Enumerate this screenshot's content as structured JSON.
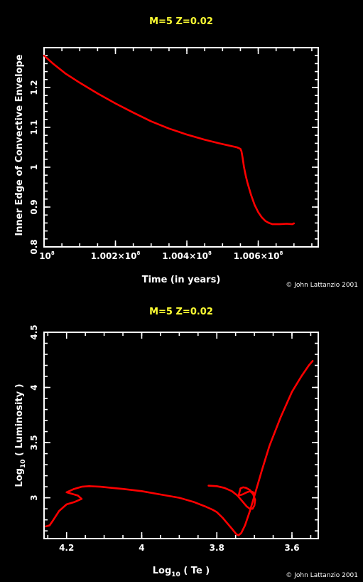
{
  "chart_data": [
    {
      "type": "line",
      "title": "M=5 Z=0.02",
      "xlabel": "Time (in years)",
      "ylabel": "Inner Edge of Convective Envelope",
      "xlim": [
        100000000.0,
        100768000.0
      ],
      "ylim": [
        0.8,
        1.3
      ],
      "x_ticks": [
        {
          "value": 100000000.0,
          "mantissa": "10",
          "exponent": "8"
        },
        {
          "value": 100200000.0,
          "mantissa": "1.002×10",
          "exponent": "8"
        },
        {
          "value": 100400000.0,
          "mantissa": "1.004×10",
          "exponent": "8"
        },
        {
          "value": 100600000.0,
          "mantissa": "1.006×10",
          "exponent": "8"
        }
      ],
      "y_ticks": [
        {
          "value": 0.8,
          "label": "0.8"
        },
        {
          "value": 0.9,
          "label": "0.9"
        },
        {
          "value": 1.0,
          "label": "1"
        },
        {
          "value": 1.1,
          "label": "1.1"
        },
        {
          "value": 1.2,
          "label": "1.2"
        }
      ],
      "credit": "© John Lattanzio 2001",
      "color": "#ff0000",
      "series": [
        {
          "x": [
            100000000.0,
            100025000.0,
            100060000.0,
            100100000.0,
            100150000.0,
            100200000.0,
            100250000.0,
            100300000.0,
            100350000.0,
            100400000.0,
            100450000.0,
            100490000.0,
            100520000.0,
            100540000.0,
            100550000.0,
            100553000.0,
            100556000.0,
            100560000.0,
            100565000.0,
            100570000.0,
            100580000.0,
            100590000.0,
            100600000.0,
            100610000.0,
            100620000.0,
            100630000.0,
            100640000.0,
            100660000.0,
            100680000.0,
            100695000.0,
            100700000.0
          ],
          "y": [
            1.28,
            1.26,
            1.235,
            1.212,
            1.185,
            1.16,
            1.137,
            1.115,
            1.097,
            1.082,
            1.069,
            1.06,
            1.054,
            1.05,
            1.046,
            1.04,
            1.025,
            1.0,
            0.978,
            0.96,
            0.93,
            0.905,
            0.887,
            0.874,
            0.865,
            0.86,
            0.857,
            0.857,
            0.858,
            0.857,
            0.859
          ]
        }
      ]
    },
    {
      "type": "line",
      "title": "M=5 Z=0.02",
      "xlabel_main": "Log",
      "xlabel_sub": "10",
      "xlabel_rest": " ( Te )",
      "ylabel_main": "Log",
      "ylabel_sub": "10",
      "ylabel_rest": " ( Luminosity )",
      "xlim": [
        4.26,
        3.53
      ],
      "ylim": [
        2.63,
        4.5
      ],
      "x_ticks": [
        {
          "value": 4.2,
          "label": "4.2"
        },
        {
          "value": 4.0,
          "label": "4"
        },
        {
          "value": 3.8,
          "label": "3.8"
        },
        {
          "value": 3.6,
          "label": "3.6"
        }
      ],
      "y_ticks": [
        {
          "value": 3.0,
          "label": "3"
        },
        {
          "value": 3.5,
          "label": "3.5"
        },
        {
          "value": 4.0,
          "label": "4"
        },
        {
          "value": 4.5,
          "label": "4.5"
        }
      ],
      "credit": "© John Lattanzio 2001",
      "color": "#ff0000",
      "series": [
        {
          "x": [
            4.255,
            4.245,
            4.235,
            4.22,
            4.2,
            4.18,
            4.16,
            4.17,
            4.2,
            4.18,
            4.16,
            4.14,
            4.11,
            4.08,
            4.05,
            4.0,
            3.95,
            3.9,
            3.86,
            3.83,
            3.81,
            3.8,
            3.785,
            3.77,
            3.76,
            3.748,
            3.742,
            3.735,
            3.725,
            3.712,
            3.698,
            3.68,
            3.66,
            3.63,
            3.6,
            3.575,
            3.555,
            3.545
          ],
          "y": [
            2.74,
            2.75,
            2.8,
            2.88,
            2.94,
            2.96,
            2.99,
            3.02,
            3.05,
            3.08,
            3.1,
            3.105,
            3.1,
            3.09,
            3.08,
            3.06,
            3.03,
            3.0,
            2.96,
            2.92,
            2.89,
            2.87,
            2.82,
            2.76,
            2.72,
            2.67,
            2.66,
            2.68,
            2.75,
            2.88,
            3.04,
            3.25,
            3.47,
            3.73,
            3.96,
            4.1,
            4.2,
            4.24
          ]
        },
        {
          "x": [
            3.822,
            3.8,
            3.78,
            3.76,
            3.745,
            3.73,
            3.72,
            3.712,
            3.705,
            3.7,
            3.698,
            3.703,
            3.712,
            3.722,
            3.73,
            3.737,
            3.742,
            3.732,
            3.72,
            3.71,
            3.703,
            3.7,
            3.705,
            3.712
          ],
          "y": [
            3.11,
            3.105,
            3.09,
            3.06,
            3.02,
            2.96,
            2.92,
            2.9,
            2.9,
            2.93,
            2.98,
            3.03,
            3.07,
            3.09,
            3.095,
            3.085,
            3.02,
            3.03,
            3.05,
            3.06,
            3.05,
            3.03,
            3.04,
            3.06
          ]
        }
      ]
    }
  ]
}
